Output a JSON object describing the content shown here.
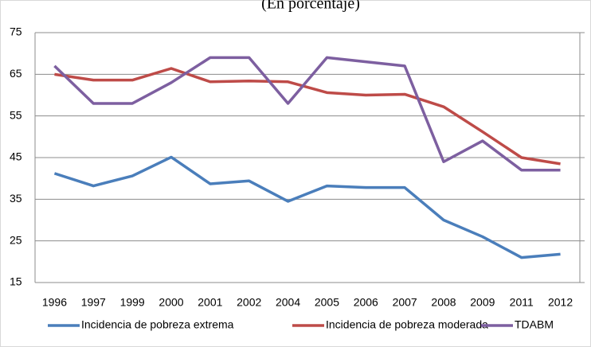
{
  "chart_data": {
    "type": "line",
    "subtitle": "(En porcentaje)",
    "categories": [
      "1996",
      "1997",
      "1999",
      "2000",
      "2001",
      "2002",
      "2004",
      "2005",
      "2006",
      "2007",
      "2008",
      "2009",
      "2011",
      "2012"
    ],
    "series": [
      {
        "name": "Incidencia de pobreza extrema",
        "color": "#4a7ebb",
        "values": [
          41.2,
          38.2,
          40.6,
          45.1,
          38.7,
          39.4,
          34.5,
          38.2,
          37.8,
          37.8,
          30.0,
          26.0,
          21.0,
          21.8
        ]
      },
      {
        "name": "Incidencia de pobreza moderada",
        "color": "#be4b48",
        "values": [
          65.0,
          63.6,
          63.6,
          66.4,
          63.2,
          63.4,
          63.2,
          60.6,
          60.0,
          60.2,
          57.2,
          51.2,
          45.0,
          43.5
        ]
      },
      {
        "name": "TDABM",
        "color": "#7d5fa0",
        "values": [
          67.0,
          58.0,
          58.0,
          63.0,
          69.0,
          69.0,
          58.0,
          69.0,
          68.0,
          67.0,
          44.0,
          49.0,
          42.0,
          42.0
        ]
      }
    ],
    "ylim": [
      15,
      75
    ],
    "yticks": [
      15,
      25,
      35,
      45,
      55,
      65,
      75
    ],
    "grid": true
  }
}
